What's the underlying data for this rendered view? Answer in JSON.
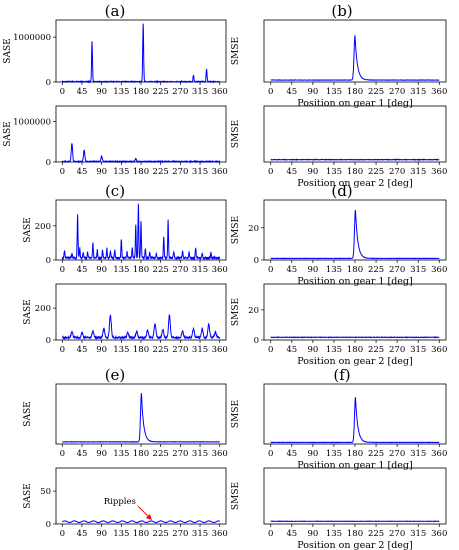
{
  "chart_data": [
    {
      "type": "line",
      "panel": "(a)",
      "subplot": "top",
      "ylabel": "SASE",
      "xlabel": "",
      "xlim": [
        0,
        360
      ],
      "ylim": [
        0,
        1300000
      ],
      "xticks": [
        "0",
        "45",
        "90",
        "135",
        "180",
        "225",
        "270",
        "315",
        "360"
      ],
      "yticks": [
        {
          "v": 0,
          "label": "0"
        },
        {
          "v": 1000000,
          "label": "1000000"
        }
      ],
      "baseline": 8000,
      "peaks": [
        [
          68,
          900000
        ],
        [
          185,
          1300000
        ],
        [
          300,
          150000
        ],
        [
          330,
          280000
        ]
      ],
      "peak_width": 1.0,
      "noise": 8000,
      "color": "#0000ff"
    },
    {
      "type": "line",
      "panel": "(a)",
      "subplot": "bottom",
      "ylabel": "SMSE",
      "xlabel": "Position on gear 1 [deg]",
      "xlim": [
        0,
        360
      ],
      "ylim": [
        0,
        45
      ],
      "xticks": [
        "0",
        "45",
        "90",
        "135",
        "180",
        "225",
        "270",
        "315",
        "360"
      ],
      "yticks": [],
      "baseline": 1.5,
      "peaks": [
        [
          180,
          36
        ]
      ],
      "asym": {
        "center": 180,
        "rise": 2,
        "decay": 5
      },
      "noise": 0.1,
      "color": "#0000ff"
    },
    {
      "type": "line",
      "panel": "(b)",
      "subplot": "top",
      "ylabel": "SASE",
      "xlabel": "",
      "xlim": [
        0,
        360
      ],
      "ylim": [
        0,
        1300000
      ],
      "xticks": [
        "0",
        "45",
        "90",
        "135",
        "180",
        "225",
        "270",
        "315",
        "360"
      ],
      "yticks": [
        {
          "v": 0,
          "label": "0"
        },
        {
          "v": 1000000,
          "label": "1000000"
        }
      ],
      "baseline": 12000,
      "peaks": [
        [
          22,
          450000
        ],
        [
          50,
          280000
        ],
        [
          90,
          130000
        ],
        [
          168,
          70000
        ]
      ],
      "peak_width": 1.5,
      "noise": 10000,
      "color": "#0000ff"
    },
    {
      "type": "line",
      "panel": "(b)",
      "subplot": "bottom",
      "ylabel": "SMSE",
      "xlabel": "Position on gear 2 [deg]",
      "xlim": [
        0,
        360
      ],
      "ylim": [
        0,
        45
      ],
      "xticks": [
        "0",
        "45",
        "90",
        "135",
        "180",
        "225",
        "270",
        "315",
        "360"
      ],
      "yticks": [],
      "baseline": 2.0,
      "peaks": [],
      "noise": 0.2,
      "color": "#0000ff"
    },
    {
      "type": "line",
      "panel": "(c)",
      "subplot": "top",
      "ylabel": "SASE",
      "xlabel": "",
      "xlim": [
        0,
        360
      ],
      "ylim": [
        0,
        330
      ],
      "xticks": [
        "0",
        "45",
        "90",
        "135",
        "180",
        "225",
        "270",
        "315",
        "360"
      ],
      "yticks": [
        {
          "v": 0,
          "label": "0"
        },
        {
          "v": 200,
          "label": "200"
        }
      ],
      "baseline": 12,
      "peaks": [
        [
          5,
          45
        ],
        [
          22,
          30
        ],
        [
          35,
          260
        ],
        [
          40,
          60
        ],
        [
          48,
          30
        ],
        [
          58,
          35
        ],
        [
          70,
          90
        ],
        [
          80,
          45
        ],
        [
          92,
          50
        ],
        [
          102,
          55
        ],
        [
          110,
          40
        ],
        [
          120,
          45
        ],
        [
          135,
          110
        ],
        [
          148,
          40
        ],
        [
          160,
          60
        ],
        [
          168,
          190
        ],
        [
          174,
          320
        ],
        [
          180,
          220
        ],
        [
          190,
          50
        ],
        [
          200,
          30
        ],
        [
          215,
          30
        ],
        [
          232,
          120
        ],
        [
          242,
          220
        ],
        [
          255,
          40
        ],
        [
          275,
          40
        ],
        [
          290,
          30
        ],
        [
          305,
          60
        ],
        [
          320,
          30
        ],
        [
          340,
          30
        ]
      ],
      "peak_width": 0.9,
      "noise": 6,
      "color": "#0000ff"
    },
    {
      "type": "line",
      "panel": "(c)",
      "subplot": "bottom",
      "ylabel": "SMSE",
      "xlabel": "Position on gear 1 [deg]",
      "xlim": [
        0,
        360
      ],
      "ylim": [
        0,
        35
      ],
      "xticks": [
        "0",
        "45",
        "90",
        "135",
        "180",
        "225",
        "270",
        "315",
        "360"
      ],
      "yticks": [
        {
          "v": 0,
          "label": "0"
        },
        {
          "v": 20,
          "label": "20"
        }
      ],
      "baseline": 1.0,
      "peaks": [
        [
          181,
          31
        ]
      ],
      "asym": {
        "center": 181,
        "rise": 2,
        "decay": 5
      },
      "noise": 0.08,
      "color": "#0000ff"
    },
    {
      "type": "line",
      "panel": "(d)",
      "subplot": "top",
      "ylabel": "SASE",
      "xlabel": "",
      "xlim": [
        0,
        360
      ],
      "ylim": [
        0,
        330
      ],
      "xticks": [
        "0",
        "45",
        "90",
        "135",
        "180",
        "225",
        "270",
        "315",
        "360"
      ],
      "yticks": [
        {
          "v": 0,
          "label": "0"
        },
        {
          "v": 200,
          "label": "200"
        }
      ],
      "baseline": 15,
      "peaks": [
        [
          22,
          35
        ],
        [
          45,
          30
        ],
        [
          70,
          40
        ],
        [
          95,
          55
        ],
        [
          110,
          140
        ],
        [
          150,
          30
        ],
        [
          170,
          40
        ],
        [
          195,
          45
        ],
        [
          212,
          85
        ],
        [
          230,
          50
        ],
        [
          245,
          140
        ],
        [
          275,
          40
        ],
        [
          300,
          55
        ],
        [
          320,
          55
        ],
        [
          335,
          85
        ],
        [
          350,
          35
        ]
      ],
      "peak_width": 2.0,
      "noise": 6,
      "color": "#0000ff"
    },
    {
      "type": "line",
      "panel": "(d)",
      "subplot": "bottom",
      "ylabel": "SMSE",
      "xlabel": "Position on gear 2 [deg]",
      "xlim": [
        0,
        360
      ],
      "ylim": [
        0,
        35
      ],
      "xticks": [
        "0",
        "45",
        "90",
        "135",
        "180",
        "225",
        "270",
        "315",
        "360"
      ],
      "yticks": [
        {
          "v": 0,
          "label": "0"
        },
        {
          "v": 20,
          "label": "20"
        }
      ],
      "baseline": 1.8,
      "peaks": [],
      "noise": 0.15,
      "color": "#0000ff"
    },
    {
      "type": "line",
      "panel": "(e)",
      "subplot": "top",
      "ylabel": "SASE",
      "xlabel": "",
      "xlim": [
        0,
        360
      ],
      "ylim": [
        0,
        80
      ],
      "xticks": [
        "0",
        "45",
        "90",
        "135",
        "180",
        "225",
        "270",
        "315",
        "360"
      ],
      "yticks": [],
      "baseline": 3,
      "peaks": [
        [
          181,
          72
        ]
      ],
      "asym": {
        "center": 181,
        "rise": 2,
        "decay": 5
      },
      "noise": 0.2,
      "color": "#0000ff"
    },
    {
      "type": "line",
      "panel": "(e)",
      "subplot": "bottom",
      "ylabel": "SMSE",
      "xlabel": "Position on gear 1 [deg]",
      "xlim": [
        0,
        360
      ],
      "ylim": [
        0,
        35
      ],
      "xticks": [
        "0",
        "45",
        "90",
        "135",
        "180",
        "225",
        "270",
        "315",
        "360"
      ],
      "yticks": [],
      "baseline": 1.0,
      "peaks": [
        [
          181,
          29
        ]
      ],
      "asym": {
        "center": 181,
        "rise": 2,
        "decay": 5
      },
      "noise": 0.08,
      "color": "#0000ff"
    },
    {
      "type": "line",
      "panel": "(f)",
      "subplot": "top",
      "ylabel": "SASE",
      "xlabel": "",
      "xlim": [
        0,
        360
      ],
      "ylim": [
        0,
        80
      ],
      "xticks": [
        "0",
        "45",
        "90",
        "135",
        "180",
        "225",
        "270",
        "315",
        "360"
      ],
      "yticks": [
        {
          "v": 0,
          "label": "0"
        },
        {
          "v": 50,
          "label": "50"
        }
      ],
      "baseline": 3.5,
      "ripple": {
        "amplitude": 1.2,
        "period": 22
      },
      "peaks": [],
      "noise": 0.1,
      "color": "#0000ff",
      "annotation": {
        "text": "Ripples",
        "x": 205,
        "y": 6
      }
    },
    {
      "type": "line",
      "panel": "(f)",
      "subplot": "bottom",
      "ylabel": "SMSE",
      "xlabel": "Position on gear 2 [deg]",
      "xlim": [
        0,
        360
      ],
      "ylim": [
        0,
        35
      ],
      "xticks": [
        "0",
        "45",
        "90",
        "135",
        "180",
        "225",
        "270",
        "315",
        "360"
      ],
      "yticks": [],
      "baseline": 1.8,
      "peaks": [],
      "noise": 0.1,
      "color": "#0000ff"
    }
  ],
  "panel_labels": [
    "(a)",
    "(b)",
    "(c)",
    "(d)",
    "(e)",
    "(f)"
  ],
  "colors": {
    "line": "#0000ff",
    "axes": "#000000",
    "annotation": "#ff0000"
  }
}
